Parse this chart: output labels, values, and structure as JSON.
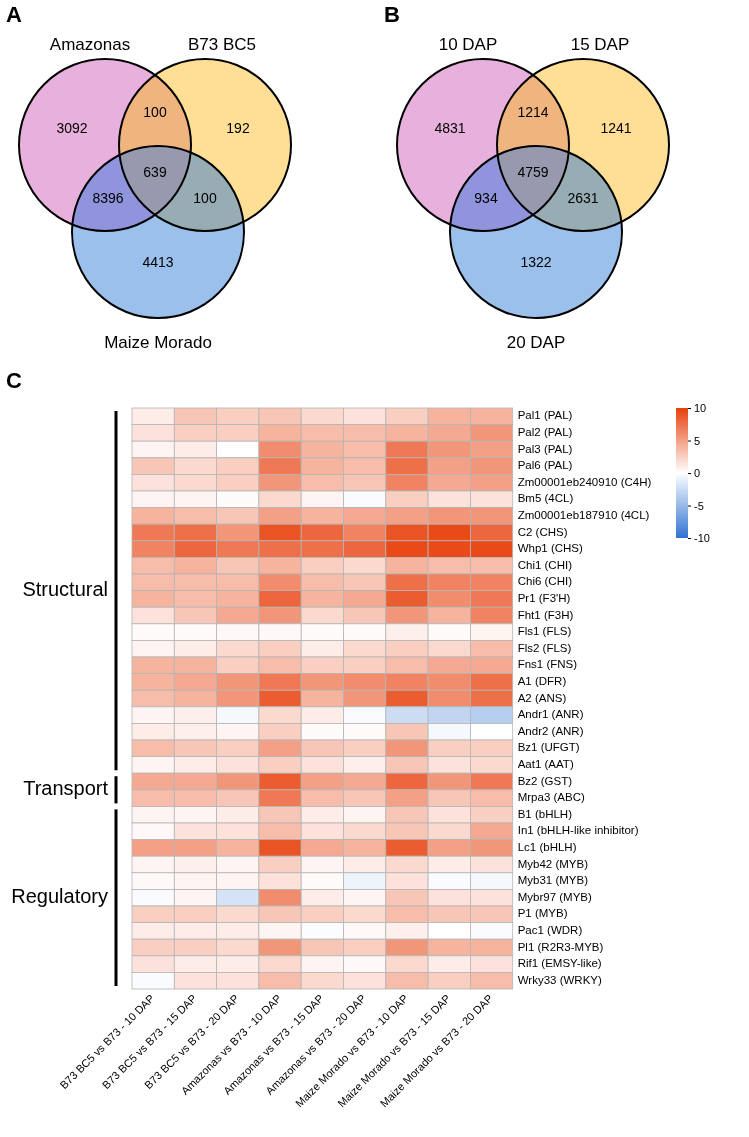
{
  "chart_data": [
    {
      "type": "other",
      "annotations": [
        "A",
        "Amazonas",
        "B73 BC5",
        "Maize Morado",
        "3092",
        "100",
        "192",
        "8396",
        "639",
        "100",
        "4413"
      ]
    },
    {
      "type": "other",
      "annotations": [
        "B",
        "10 DAP",
        "15 DAP",
        "20 DAP",
        "4831",
        "1214",
        "1241",
        "934",
        "4759",
        "2631",
        "1322"
      ]
    },
    {
      "type": "heatmap",
      "annotations": [
        "C",
        "Structural",
        "Transport",
        "Regulatory"
      ],
      "categories": [
        "B73 BC5 vs B73 - 10 DAP",
        "B73 BC5 vs B73 - 15 DAP",
        "B73 BC5 vs B73 - 20 DAP",
        "Amazonas vs B73 - 10 DAP",
        "Amazonas vs B73 - 15 DAP",
        "Amazonas vs B73 - 20 DAP",
        "Maize Morado vs B73 - 10 DAP",
        "Maize Morado vs B73 - 15 DAP",
        "Maize Morado vs B73 - 20 DAP"
      ],
      "y_categories": [
        "Pal1 (PAL)",
        "Pal2 (PAL)",
        "Pal3 (PAL)",
        "Pal6 (PAL)",
        "Zm00001eb240910 (C4H)",
        "Bm5 (4CL)",
        "Zm00001eb187910 (4CL)",
        "C2 (CHS)",
        "Whp1 (CHS)",
        "Chi1 (CHI)",
        "Chi6 (CHI)",
        "Pr1 (F3'H)",
        "Fht1 (F3H)",
        "Fls1 (FLS)",
        "Fls2 (FLS)",
        "Fns1 (FNS)",
        "A1 (DFR)",
        "A2 (ANS)",
        "Andr1 (ANR)",
        "Andr2 (ANR)",
        "Bz1 (UFGT)",
        "Aat1 (AAT)",
        "Bz2 (GST)",
        "Mrpa3 (ABC)",
        "B1 (bHLH)",
        "In1 (bHLH-like inhibitor)",
        "Lc1 (bHLH)",
        "Myb42 (MYB)",
        "Myb31 (MYB)",
        "Mybr97 (MYB)",
        "P1 (MYB)",
        "Pac1 (WDR)",
        "Pl1 (R2R3-MYB)",
        "Rif1 (EMSY-like)",
        "Wrky33 (WRKY)"
      ],
      "cells": [
        [
          1,
          3,
          2.5,
          3,
          2,
          1.5,
          2.5,
          4,
          4
        ],
        [
          1.5,
          2.5,
          2.5,
          4,
          3.5,
          3.5,
          4,
          4.5,
          5.5
        ],
        [
          0.5,
          1,
          0,
          6,
          4,
          3.5,
          7,
          5.5,
          5
        ],
        [
          3,
          2,
          2.5,
          7,
          4,
          3.5,
          7.5,
          5,
          5.5
        ],
        [
          1.5,
          2,
          2.5,
          5.5,
          3.5,
          3,
          6.5,
          4.5,
          5
        ],
        [
          0.5,
          0.5,
          0.2,
          2,
          0.5,
          -0.3,
          2.5,
          1.5,
          1.5
        ],
        [
          4,
          3.5,
          3,
          5,
          4,
          4.5,
          5,
          5.5,
          5.5
        ],
        [
          7,
          7.5,
          5.5,
          9,
          8,
          6.5,
          9,
          9.5,
          8
        ],
        [
          6.5,
          8,
          7,
          7.5,
          7.5,
          8,
          9.5,
          9.5,
          9.5
        ],
        [
          3.5,
          4,
          3,
          4,
          2.5,
          2,
          4,
          3.5,
          3.5
        ],
        [
          3.5,
          3.5,
          3.5,
          6,
          3.5,
          3,
          7.5,
          6.5,
          6.5
        ],
        [
          4,
          3.5,
          4,
          8,
          4,
          4.5,
          8.5,
          6,
          7
        ],
        [
          1.5,
          3,
          4.5,
          5.5,
          2,
          3,
          5.5,
          4,
          6.5
        ],
        [
          0.2,
          0.2,
          0.3,
          0.3,
          0.2,
          0.2,
          0.8,
          0.2,
          0.6
        ],
        [
          0.5,
          1,
          2,
          2.5,
          1,
          2,
          2.5,
          2,
          3.5
        ],
        [
          4,
          4,
          2.5,
          3.5,
          2.5,
          2.5,
          3.5,
          4.5,
          4.5
        ],
        [
          4,
          4.5,
          5.5,
          7,
          5.5,
          6,
          6.5,
          6,
          7.5
        ],
        [
          3.5,
          4,
          5.5,
          8.5,
          4,
          5.5,
          8.5,
          6,
          7.5
        ],
        [
          0.5,
          0.8,
          -0.5,
          2,
          1,
          -0.3,
          -2.5,
          -3,
          -3.5
        ],
        [
          1,
          0.8,
          0.5,
          2.5,
          0.2,
          0.2,
          3,
          -0.5,
          0
        ],
        [
          3.5,
          3,
          2.5,
          5,
          3,
          2.5,
          5.5,
          2.5,
          2.5
        ],
        [
          0.5,
          1,
          1.5,
          2.5,
          1.5,
          0.8,
          3,
          1.5,
          2
        ],
        [
          4.5,
          4.5,
          5.5,
          8.5,
          5,
          4.5,
          8,
          5.5,
          7
        ],
        [
          3.5,
          3.5,
          3,
          7,
          3.5,
          3,
          5,
          3,
          3.5
        ],
        [
          0.5,
          0.5,
          1,
          3,
          1,
          0.5,
          3,
          1.5,
          2.5
        ],
        [
          0.3,
          1.5,
          1.5,
          3.5,
          1.5,
          2,
          3,
          2,
          4.5
        ],
        [
          5,
          5,
          4,
          9,
          4.5,
          4,
          8.5,
          5,
          5.5
        ],
        [
          0.5,
          0.8,
          0.5,
          2.5,
          0.5,
          1,
          2,
          1,
          1.5
        ],
        [
          0.3,
          0.5,
          0.5,
          1.5,
          0.2,
          -0.8,
          1.5,
          -0.3,
          -0.5
        ],
        [
          -0.3,
          0.5,
          -2,
          6,
          1,
          0.5,
          3,
          1.5,
          1.5
        ],
        [
          2.5,
          2.5,
          2,
          3,
          2.5,
          2,
          3.5,
          3,
          3
        ],
        [
          1,
          1,
          1,
          0.5,
          -0.2,
          0.3,
          0.8,
          0,
          -0.3
        ],
        [
          2.5,
          2.5,
          2,
          5.5,
          3,
          2.5,
          5.5,
          4,
          4
        ],
        [
          1.5,
          1,
          1,
          2,
          0.5,
          0.3,
          2,
          1,
          1.5
        ],
        [
          -0.3,
          1.5,
          1.5,
          3.5,
          2,
          1.5,
          3.5,
          2.5,
          3.5
        ]
      ],
      "colors": [
        "#2f73d0",
        "#ffffff",
        "#e8400c"
      ],
      "clim": [
        -10,
        10
      ],
      "cticks": [
        10,
        5,
        0,
        -5,
        -10
      ]
    }
  ]
}
